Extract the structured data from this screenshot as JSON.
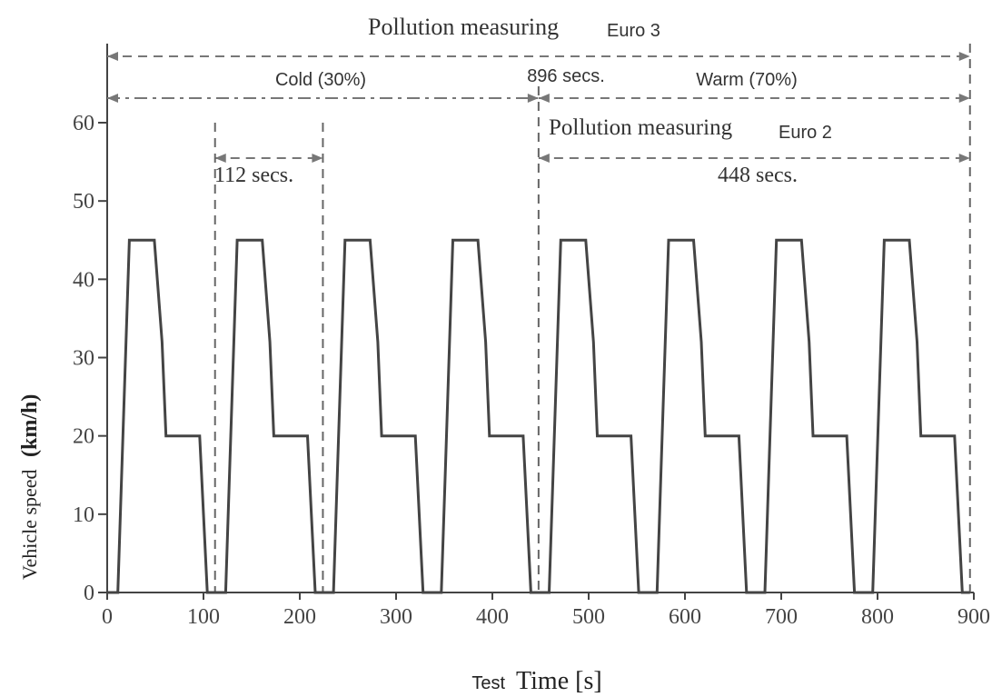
{
  "chart_data": {
    "type": "line",
    "xlabel_small": "Test",
    "xlabel": "Time [s]",
    "ylabel_prefix": "Vehicle speed",
    "ylabel_unit": "(km/h)",
    "xlim": [
      0,
      900
    ],
    "ylim": [
      0,
      60
    ],
    "x_ticks": [
      0,
      100,
      200,
      300,
      400,
      500,
      600,
      700,
      800,
      900
    ],
    "y_ticks": [
      0,
      10,
      20,
      30,
      40,
      50,
      60
    ],
    "grid": false,
    "series": [
      {
        "x": [
          0,
          11,
          15,
          23,
          49,
          57,
          61,
          85,
          96,
          104,
          112
        ],
        "y": [
          0,
          0,
          15,
          45,
          45,
          32,
          20,
          20,
          20,
          0,
          0
        ],
        "repeat_count": 8,
        "repeat_period": 112
      }
    ],
    "annotations": {
      "euro3": {
        "title": "Pollution measuring",
        "tag": "Euro 3",
        "from": 0,
        "to": 896
      },
      "cold": {
        "label": "Cold (30%)",
        "from": 0,
        "to": 448
      },
      "total": {
        "label": "896 secs."
      },
      "warm": {
        "label": "Warm (70%)",
        "from": 448,
        "to": 896
      },
      "cycle": {
        "label": "112 secs.",
        "from": 112,
        "to": 224
      },
      "euro2": {
        "title": "Pollution measuring",
        "tag": "Euro 2",
        "label": "448 secs.",
        "from": 448,
        "to": 896
      }
    }
  }
}
